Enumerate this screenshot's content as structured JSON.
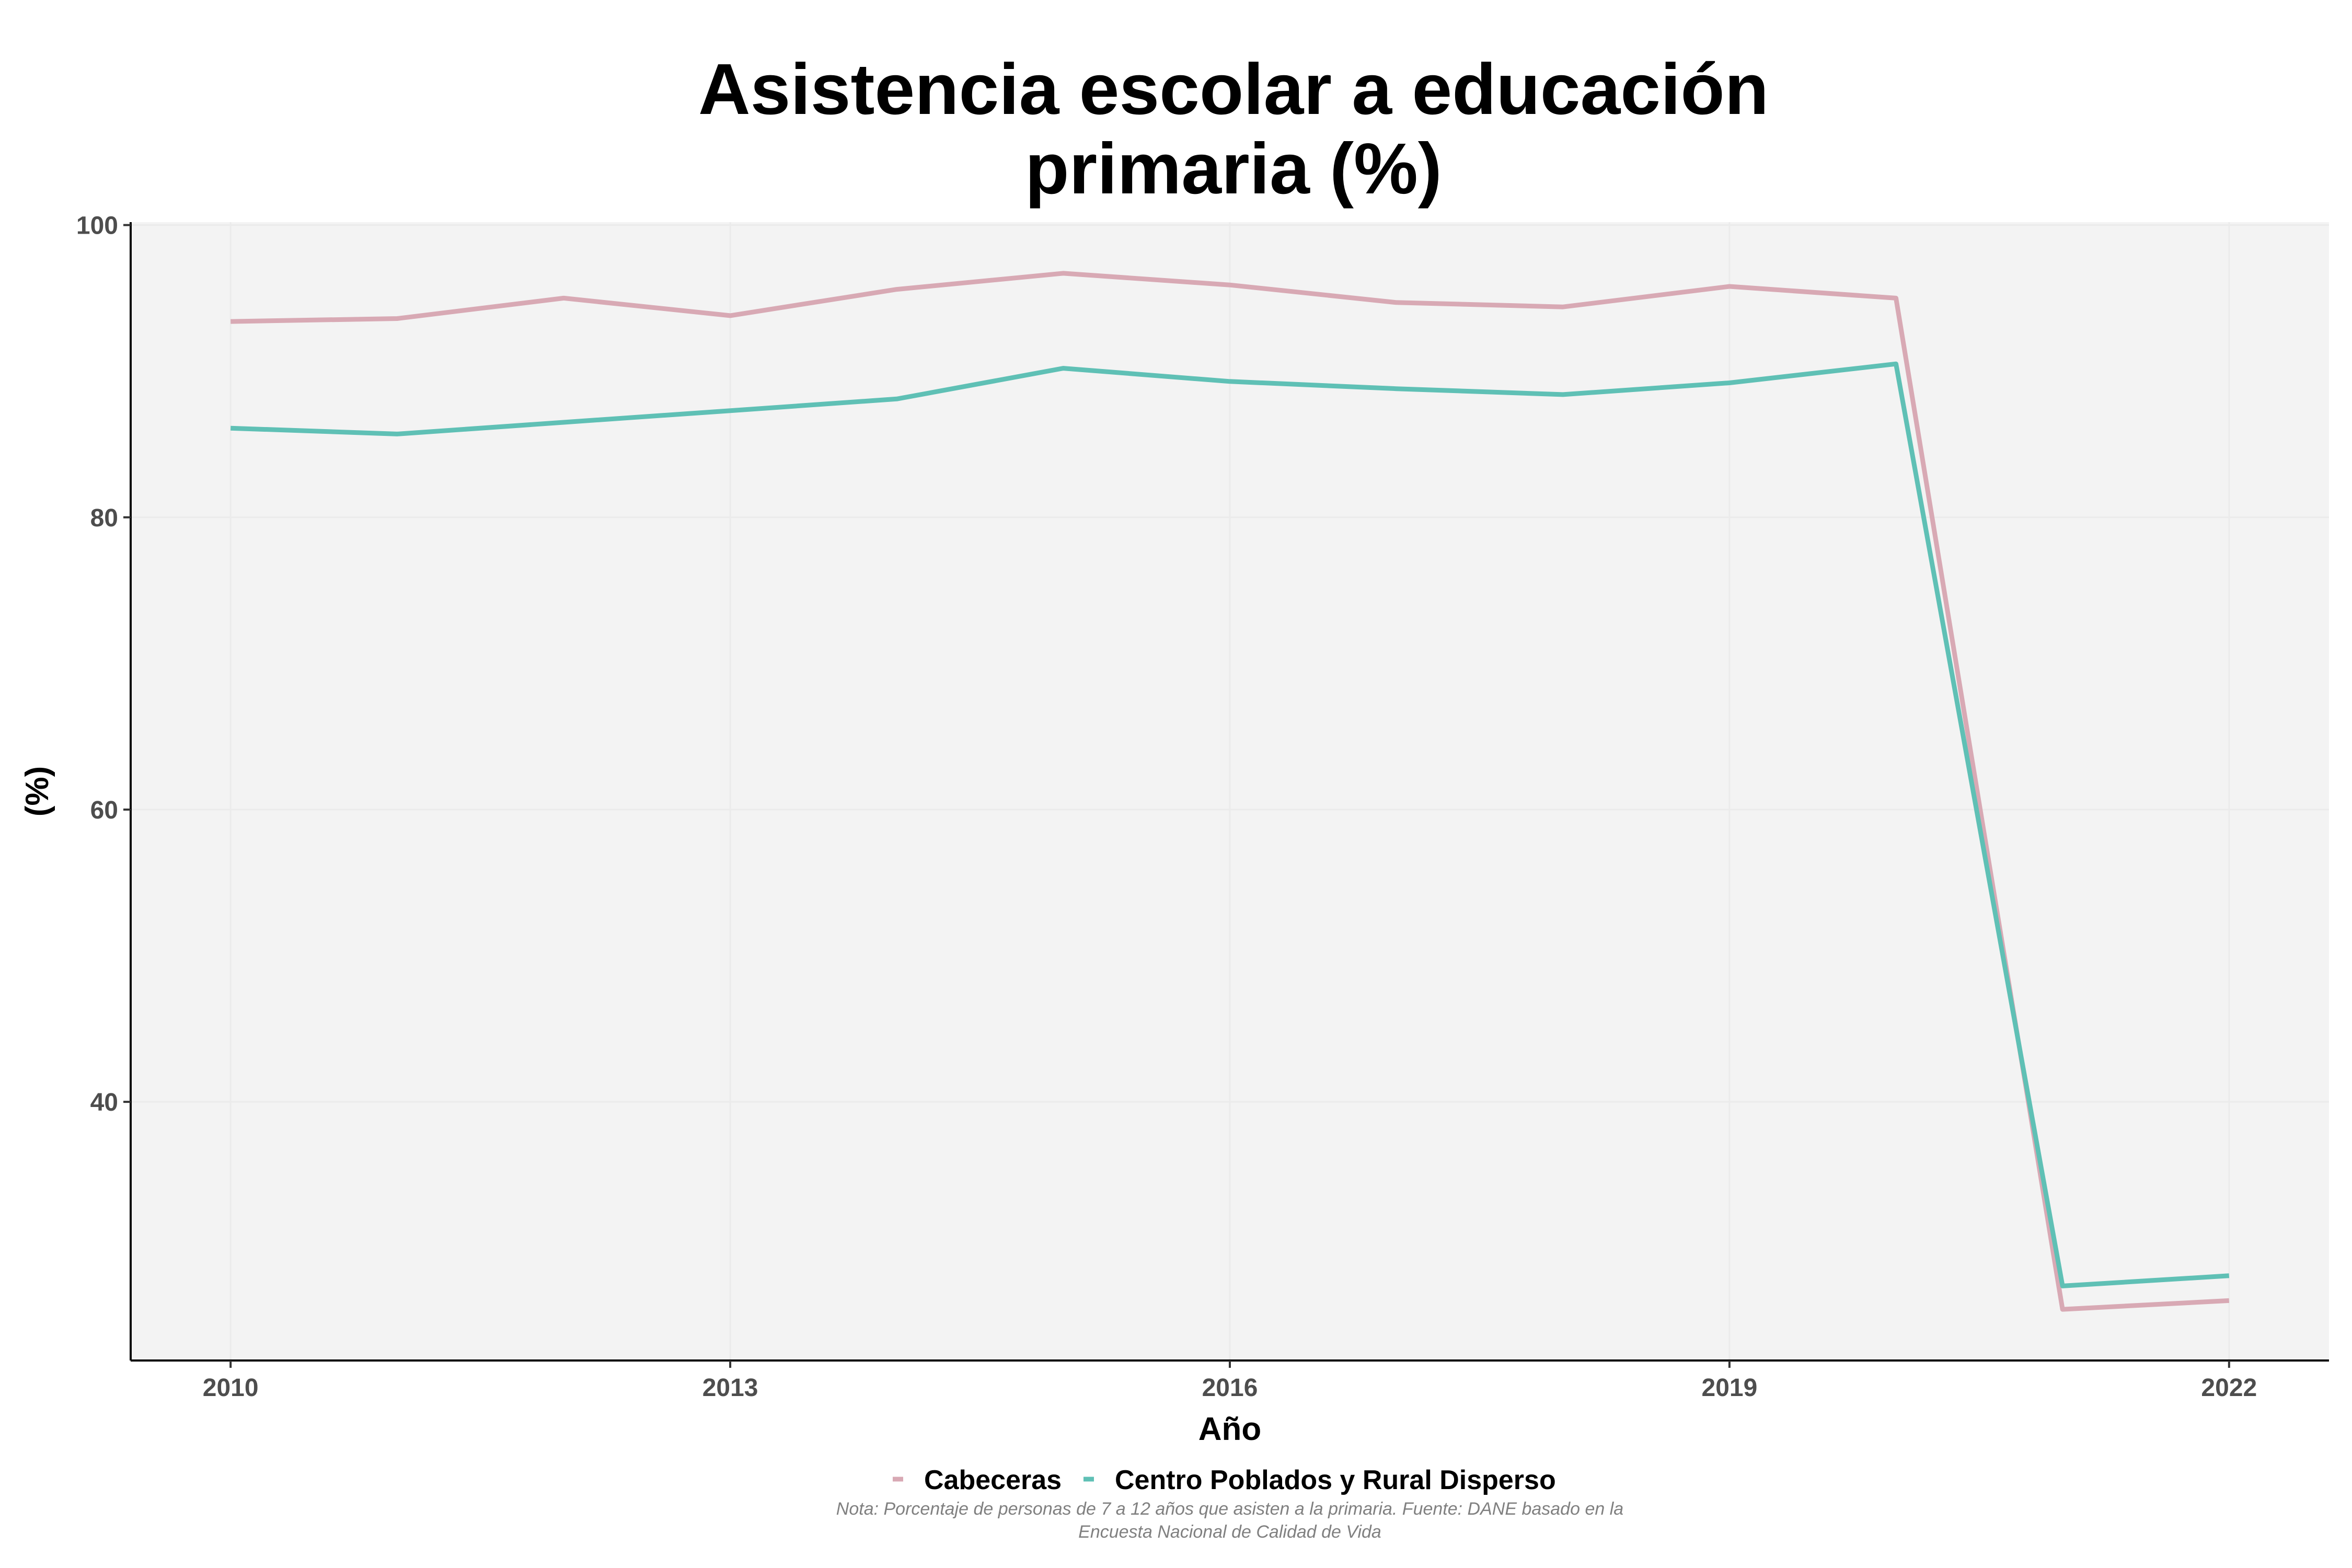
{
  "chart_data": {
    "type": "line",
    "title_lines": [
      "Asistencia escolar a educación",
      "primaria (%)"
    ],
    "xlabel": "Año",
    "ylabel": "(%)",
    "x": [
      2010,
      2011,
      2012,
      2013,
      2014,
      2015,
      2016,
      2017,
      2018,
      2019,
      2020,
      2021,
      2022
    ],
    "xticks": [
      2010,
      2013,
      2016,
      2019,
      2022
    ],
    "yticks": [
      40,
      60,
      80,
      100
    ],
    "xlim": [
      2009.4,
      2022.6
    ],
    "ylim": [
      22.3,
      100.2
    ],
    "grid": true,
    "legend_position": "bottom",
    "series": [
      {
        "name": "Cabeceras",
        "color": "#d8a9b4",
        "values": [
          93.4,
          93.6,
          95.0,
          93.8,
          95.6,
          96.7,
          95.9,
          94.7,
          94.4,
          95.8,
          95.0,
          25.8,
          26.4
        ]
      },
      {
        "name": "Centro Poblados y Rural Disperso",
        "color": "#5fc0b5",
        "values": [
          86.1,
          85.7,
          86.5,
          87.3,
          88.1,
          90.2,
          89.3,
          88.8,
          88.4,
          89.2,
          90.5,
          27.4,
          28.1
        ]
      }
    ],
    "caption_lines": [
      "Nota: Porcentaje de personas de 7 a 12 años que asisten a la primaria. Fuente: DANE basado en la",
      "Encuesta Nacional de Calidad de Vida"
    ]
  }
}
